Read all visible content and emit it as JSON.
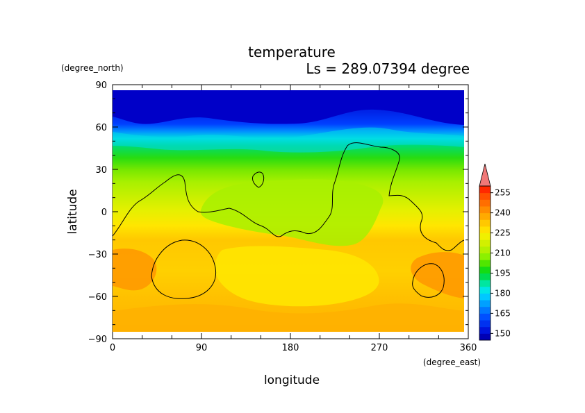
{
  "chart_data": {
    "type": "heatmap",
    "title": "temperature",
    "subtitle": "Ls = 289.07394 degree",
    "xlabel": "longitude",
    "ylabel": "latitude",
    "xunits": "(degree_east)",
    "yunits": "(degree_north)",
    "xlim": [
      0,
      360
    ],
    "ylim": [
      -90,
      90
    ],
    "xticks": [
      "0",
      "90",
      "180",
      "270",
      "360"
    ],
    "yticks": [
      "90",
      "60",
      "30",
      "0",
      "−30",
      "−60",
      "−90"
    ],
    "colorbar": {
      "labels": [
        "255",
        "240",
        "225",
        "210",
        "195",
        "180",
        "165",
        "150"
      ],
      "levels": [
        145,
        150,
        155,
        160,
        165,
        170,
        175,
        180,
        185,
        190,
        195,
        200,
        205,
        210,
        215,
        220,
        225,
        230,
        235,
        240,
        245,
        250,
        255,
        260
      ],
      "colors": [
        "#0000b4",
        "#0014dc",
        "#0032f0",
        "#0050ff",
        "#0078ff",
        "#00a0ff",
        "#00c8ff",
        "#00e6e6",
        "#00e6a0",
        "#00dc50",
        "#14dc14",
        "#50e600",
        "#8cf000",
        "#b4f000",
        "#d2f000",
        "#f0f000",
        "#ffe100",
        "#ffc800",
        "#ffaa00",
        "#ff8c00",
        "#ff6e00",
        "#ff5000",
        "#ff2800",
        "#f07878"
      ]
    },
    "latitude_bands": [
      {
        "lat": [
          85,
          60
        ],
        "value": 150
      },
      {
        "lat": [
          60,
          45
        ],
        "value": 180
      },
      {
        "lat": [
          45,
          30
        ],
        "value": 200
      },
      {
        "lat": [
          30,
          15
        ],
        "value": 210
      },
      {
        "lat": [
          15,
          0
        ],
        "value": 220
      },
      {
        "lat": [
          0,
          -20
        ],
        "value": 228
      },
      {
        "lat": [
          -20,
          -40
        ],
        "value": 232
      },
      {
        "lat": [
          -40,
          -60
        ],
        "value": 230
      },
      {
        "lat": [
          -60,
          -85
        ],
        "value": 232
      }
    ],
    "contour": "topography outline (black line)",
    "grid": false,
    "colorbar_placement": "right"
  }
}
